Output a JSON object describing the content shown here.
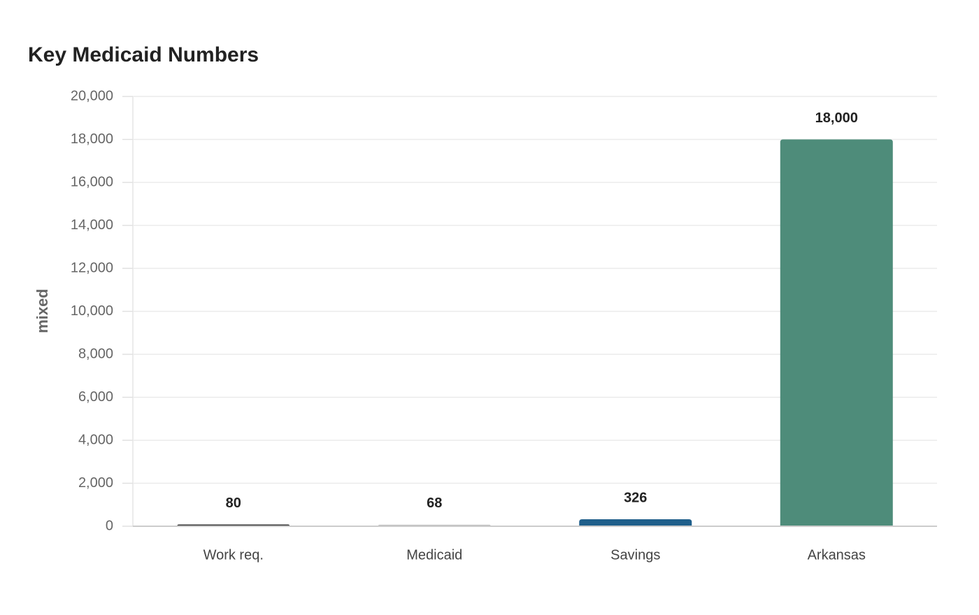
{
  "chart_data": {
    "type": "bar",
    "title": "Key Medicaid Numbers",
    "y_label": "mixed",
    "categories": [
      "Work req.",
      "Medicaid",
      "Savings",
      "Arkansas"
    ],
    "values": [
      80,
      68,
      326,
      18000
    ],
    "value_labels": [
      "80",
      "68",
      "326",
      "18,000"
    ],
    "colors": [
      "#333333",
      "#bdbdbd",
      "#1f5f8b",
      "#4e8c7a"
    ],
    "ylim": [
      0,
      20000
    ],
    "yticks": [
      0,
      {
        "value": 2000,
        "label": "2,000"
      },
      {
        "value": 4000,
        "label": "4,000"
      },
      {
        "value": 6000,
        "label": "6,000"
      },
      {
        "value": 8000,
        "label": "8,000"
      },
      {
        "value": 10000,
        "label": "10,000"
      },
      {
        "value": 12000,
        "label": "12,000"
      },
      {
        "value": 14000,
        "label": "14,000"
      },
      {
        "value": 16000,
        "label": "16,000"
      },
      {
        "value": 18000,
        "label": "18,000"
      },
      {
        "value": 20000,
        "label": "20,000"
      }
    ],
    "grid": true
  }
}
